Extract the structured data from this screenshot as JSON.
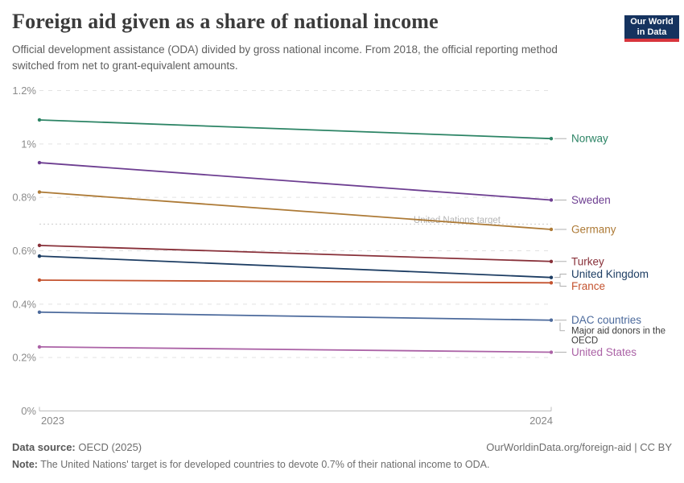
{
  "header": {
    "title": "Foreign aid given as a share of national income",
    "subtitle": "Official development assistance (ODA) divided by gross national income. From 2018, the official reporting method switched from net to grant-equivalent amounts.",
    "logo": {
      "line1": "Our World",
      "line2": "in Data",
      "bg_color": "#15335f",
      "accent_color": "#d8353c"
    }
  },
  "chart_data": {
    "type": "line",
    "unit": "%",
    "x": [
      "2023",
      "2024"
    ],
    "series": [
      {
        "name": "Norway",
        "color": "#2c8465",
        "values": [
          1.09,
          1.02
        ]
      },
      {
        "name": "Sweden",
        "color": "#6d3e91",
        "values": [
          0.93,
          0.79
        ]
      },
      {
        "name": "Germany",
        "color": "#ad7a36",
        "values": [
          0.82,
          0.68
        ]
      },
      {
        "name": "Turkey",
        "color": "#883039",
        "values": [
          0.62,
          0.56
        ]
      },
      {
        "name": "United Kingdom",
        "color": "#1d3d63",
        "values": [
          0.58,
          0.5
        ]
      },
      {
        "name": "France",
        "color": "#c4532f",
        "values": [
          0.49,
          0.48
        ]
      },
      {
        "name": "DAC countries",
        "color": "#4c6a9c",
        "values": [
          0.37,
          0.34
        ],
        "sublabel": "Major aid donors in the OECD"
      },
      {
        "name": "United States",
        "color": "#ab62a6",
        "values": [
          0.24,
          0.22
        ]
      }
    ],
    "ylim": [
      0,
      1.2
    ],
    "yticks": [
      {
        "v": 0,
        "label": "0%"
      },
      {
        "v": 0.2,
        "label": "0.2%"
      },
      {
        "v": 0.4,
        "label": "0.4%"
      },
      {
        "v": 0.6,
        "label": "0.6%"
      },
      {
        "v": 0.8,
        "label": "0.8%"
      },
      {
        "v": 1.0,
        "label": "1%"
      },
      {
        "v": 1.2,
        "label": "1.2%"
      }
    ],
    "target": {
      "value": 0.7,
      "label": "United Nations target"
    },
    "grid": true,
    "legend_position": "right-of-lines",
    "title": "Foreign aid given as a share of national income"
  },
  "footer": {
    "data_source_label": "Data source:",
    "data_source_value": "OECD (2025)",
    "attribution": "OurWorldinData.org/foreign-aid | CC BY",
    "note_label": "Note:",
    "note_text": "The United Nations' target is for developed countries to devote 0.7% of their national income to ODA."
  }
}
